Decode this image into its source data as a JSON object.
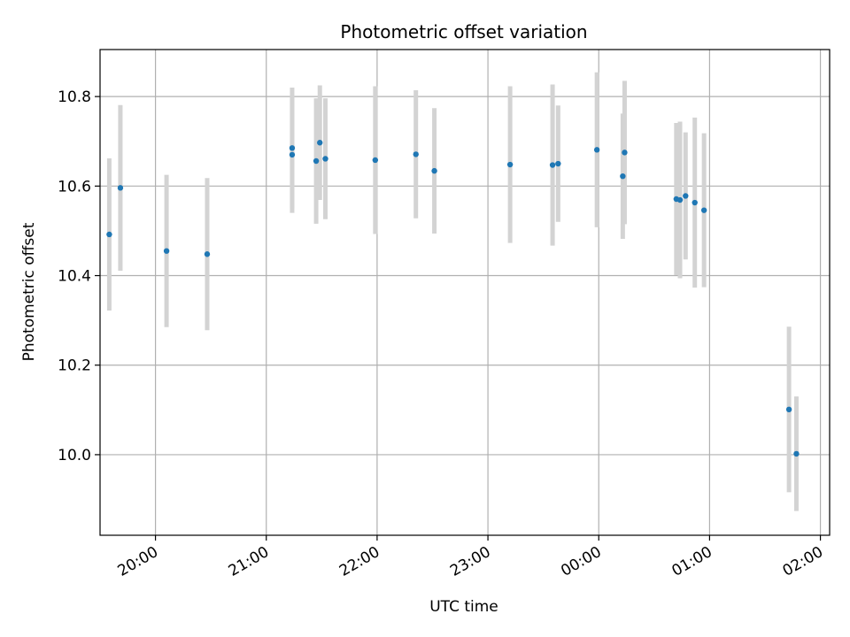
{
  "chart_data": {
    "type": "scatter",
    "title": "Photometric offset variation",
    "xlabel": "UTC time",
    "ylabel": "Photometric offset",
    "x_axis": {
      "type": "time",
      "range": [
        "19:30",
        "02:05"
      ],
      "ticks": [
        "20:00",
        "21:00",
        "22:00",
        "23:00",
        "00:00",
        "01:00",
        "02:00"
      ]
    },
    "y_axis": {
      "range": [
        9.82,
        10.905
      ],
      "ticks": [
        "10.0",
        "10.2",
        "10.4",
        "10.6",
        "10.8"
      ]
    },
    "grid": true,
    "colors": {
      "points": "#1f77b4",
      "error_bars": "#d3d3d3",
      "grid": "#b0b0b0"
    },
    "points": [
      {
        "time": "19:35",
        "y": 10.492,
        "err": 0.17
      },
      {
        "time": "19:41",
        "y": 10.596,
        "err": 0.185
      },
      {
        "time": "20:06",
        "y": 10.455,
        "err": 0.17
      },
      {
        "time": "20:28",
        "y": 10.448,
        "err": 0.17
      },
      {
        "time": "21:14",
        "y": 10.685,
        "err": 0.135
      },
      {
        "time": "21:14",
        "y": 10.67,
        "err": 0.13
      },
      {
        "time": "21:27",
        "y": 10.656,
        "err": 0.14
      },
      {
        "time": "21:29",
        "y": 10.697,
        "err": 0.128
      },
      {
        "time": "21:32",
        "y": 10.661,
        "err": 0.135
      },
      {
        "time": "21:59",
        "y": 10.658,
        "err": 0.165
      },
      {
        "time": "22:21",
        "y": 10.671,
        "err": 0.143
      },
      {
        "time": "22:31",
        "y": 10.634,
        "err": 0.14
      },
      {
        "time": "23:12",
        "y": 10.648,
        "err": 0.175
      },
      {
        "time": "23:35",
        "y": 10.647,
        "err": 0.18
      },
      {
        "time": "23:38",
        "y": 10.65,
        "err": 0.13
      },
      {
        "time": "23:59",
        "y": 10.681,
        "err": 0.173
      },
      {
        "time": "00:13",
        "y": 10.622,
        "err": 0.14
      },
      {
        "time": "00:14",
        "y": 10.675,
        "err": 0.16
      },
      {
        "time": "00:42",
        "y": 10.571,
        "err": 0.17
      },
      {
        "time": "00:44",
        "y": 10.569,
        "err": 0.175
      },
      {
        "time": "00:47",
        "y": 10.578,
        "err": 0.142
      },
      {
        "time": "00:52",
        "y": 10.563,
        "err": 0.19
      },
      {
        "time": "00:57",
        "y": 10.546,
        "err": 0.172
      },
      {
        "time": "01:43",
        "y": 10.101,
        "err": 0.185
      },
      {
        "time": "01:47",
        "y": 10.002,
        "err": 0.128
      }
    ]
  }
}
